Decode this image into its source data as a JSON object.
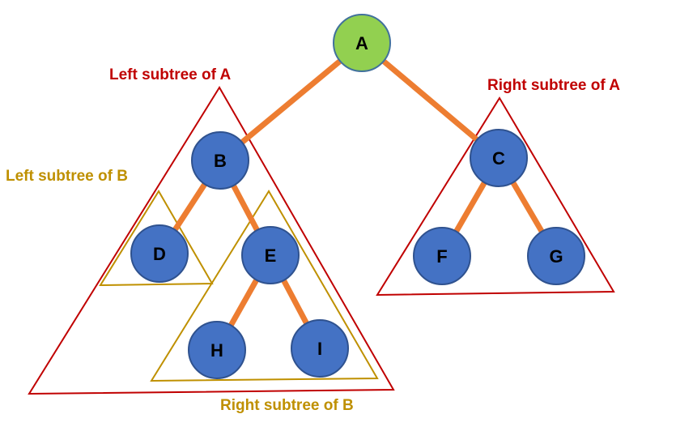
{
  "colors": {
    "edge": "#ED7D31",
    "node_fill": "#4472C4",
    "node_stroke": "#2F528F",
    "root_fill": "#92D050",
    "root_stroke": "#41719C",
    "outer_region": "#C00000",
    "inner_region": "#BF9000"
  },
  "nodes": {
    "a": "A",
    "b": "B",
    "c": "C",
    "d": "D",
    "e": "E",
    "f": "F",
    "g": "G",
    "h": "H",
    "i": "I"
  },
  "regions": {
    "left_subtree_a": "Left subtree of A",
    "right_subtree_a": "Right subtree of A",
    "left_subtree_b": "Left subtree of B",
    "right_subtree_b": "Right subtree of B"
  }
}
